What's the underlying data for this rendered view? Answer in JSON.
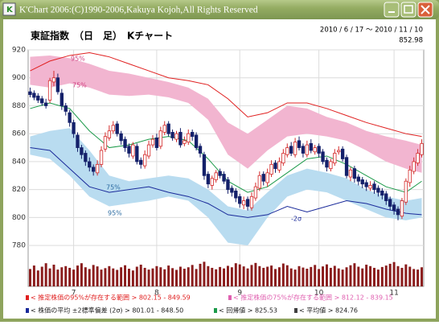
{
  "window_title": "K'Chart 2006:(C)1990-2006,Kakuya Kojoh,All Rights Reserved",
  "chart_data": {
    "type": "candlestick",
    "title": "東証指数　（日　足）　Kチャート",
    "subtitle": "2010 / 6 / 17 ～ 2010 / 11 / 10",
    "last_close": 852.98,
    "categories": [
      null,
      null,
      null,
      null,
      null,
      null,
      null,
      null,
      null,
      null,
      null,
      null,
      null,
      null,
      null,
      null,
      null,
      null,
      null,
      null,
      null,
      null,
      null,
      null,
      null,
      null,
      null,
      null,
      null,
      null,
      null,
      null,
      null,
      null,
      null,
      null,
      null,
      null,
      null,
      null,
      null,
      null,
      null,
      null,
      null,
      null,
      null,
      null,
      null,
      null,
      null,
      null,
      null,
      null,
      null,
      null,
      null,
      null,
      null,
      null,
      null,
      null,
      null,
      null,
      null,
      null,
      null,
      null,
      null,
      null,
      null,
      null,
      null,
      null,
      null,
      null,
      null,
      null,
      null,
      null,
      null,
      null,
      null,
      null,
      null,
      null,
      null,
      null,
      null,
      null,
      null,
      null,
      null,
      null,
      null,
      null,
      null,
      null,
      null,
      null
    ],
    "open": [
      890,
      889,
      887,
      885,
      882,
      884,
      897,
      900,
      889,
      880,
      875,
      868,
      859,
      850,
      846,
      840,
      836,
      832,
      838,
      849,
      857,
      862,
      867,
      860,
      856,
      851,
      844,
      851,
      841,
      837,
      844,
      852,
      857,
      851,
      861,
      867,
      861,
      856,
      861,
      853,
      854,
      861,
      859,
      851,
      845,
      831,
      823,
      827,
      833,
      831,
      827,
      821,
      819,
      815,
      809,
      813,
      807,
      814,
      821,
      831,
      825,
      831,
      839,
      834,
      839,
      845,
      851,
      845,
      855,
      851,
      845,
      853,
      847,
      851,
      847,
      841,
      835,
      839,
      847,
      849,
      843,
      829,
      835,
      829,
      827,
      825,
      821,
      824,
      821,
      819,
      817,
      813,
      809,
      806,
      801,
      811,
      825,
      833,
      839,
      845
    ],
    "high": [
      893,
      891,
      889,
      887,
      885,
      900,
      905,
      903,
      892,
      882,
      877,
      870,
      861,
      852,
      848,
      843,
      838,
      841,
      851,
      861,
      866,
      869,
      869,
      862,
      858,
      853,
      854,
      853,
      843,
      848,
      855,
      859,
      860,
      865,
      869,
      869,
      863,
      862,
      864,
      858,
      863,
      863,
      861,
      853,
      847,
      833,
      830,
      834,
      835,
      833,
      829,
      823,
      821,
      817,
      815,
      815,
      818,
      825,
      833,
      833,
      835,
      841,
      841,
      843,
      849,
      853,
      854,
      857,
      858,
      853,
      855,
      856,
      852,
      853,
      849,
      843,
      842,
      849,
      851,
      851,
      845,
      836,
      837,
      831,
      829,
      827,
      826,
      826,
      823,
      821,
      819,
      815,
      811,
      808,
      814,
      828,
      837,
      843,
      849,
      856
    ],
    "low": [
      886,
      884,
      882,
      880,
      878,
      882,
      894,
      888,
      877,
      873,
      865,
      857,
      847,
      842,
      837,
      833,
      830,
      830,
      836,
      847,
      855,
      860,
      858,
      852,
      847,
      843,
      842,
      838,
      835,
      835,
      842,
      850,
      848,
      849,
      859,
      858,
      855,
      854,
      850,
      851,
      852,
      855,
      848,
      843,
      827,
      821,
      820,
      825,
      828,
      824,
      817,
      815,
      811,
      807,
      806,
      805,
      805,
      812,
      819,
      823,
      822,
      829,
      832,
      832,
      837,
      843,
      844,
      843,
      848,
      843,
      843,
      846,
      845,
      843,
      838,
      833,
      833,
      837,
      845,
      840,
      828,
      826,
      825,
      823,
      821,
      819,
      819,
      817,
      815,
      813,
      809,
      805,
      802,
      798,
      799,
      809,
      822,
      831,
      837,
      843
    ],
    "close": [
      888,
      886,
      884,
      882,
      880,
      898,
      900,
      890,
      880,
      876,
      868,
      860,
      850,
      845,
      840,
      836,
      833,
      838,
      848,
      858,
      862,
      866,
      860,
      855,
      850,
      846,
      852,
      840,
      838,
      845,
      852,
      856,
      850,
      862,
      866,
      860,
      857,
      860,
      852,
      855,
      860,
      858,
      850,
      846,
      830,
      824,
      828,
      832,
      830,
      826,
      820,
      818,
      814,
      810,
      812,
      808,
      815,
      822,
      830,
      826,
      832,
      838,
      835,
      840,
      846,
      850,
      846,
      854,
      850,
      846,
      852,
      848,
      850,
      846,
      840,
      836,
      840,
      846,
      848,
      842,
      830,
      834,
      828,
      826,
      824,
      822,
      823,
      820,
      818,
      816,
      812,
      808,
      805,
      802,
      812,
      826,
      834,
      840,
      846,
      852.98
    ],
    "up_color": "#d42a2a",
    "down_color": "#14206a",
    "ylim": [
      772,
      920
    ],
    "yticks": [
      780,
      800,
      820,
      840,
      860,
      880,
      900,
      920
    ],
    "xticks": [
      {
        "value": 11,
        "label": "7"
      },
      {
        "value": 32,
        "label": "8"
      },
      {
        "value": 53,
        "label": "9"
      },
      {
        "value": 73,
        "label": "10"
      },
      {
        "value": 92,
        "label": "11"
      }
    ],
    "grid": true,
    "bands": [
      {
        "color": "#f2b5d0",
        "x": [
          0,
          5,
          10,
          15,
          20,
          25,
          30,
          35,
          40,
          45,
          50,
          55,
          60,
          65,
          70,
          75,
          80,
          85,
          90,
          95,
          99
        ],
        "high": [
          915,
          916,
          914,
          910,
          905,
          903,
          900,
          897,
          893,
          885,
          868,
          860,
          870,
          880,
          878,
          872,
          868,
          862,
          858,
          855,
          852
        ],
        "low": [
          895,
          893,
          896,
          893,
          888,
          887,
          888,
          886,
          882,
          870,
          845,
          835,
          848,
          858,
          860,
          858,
          855,
          848,
          840,
          835,
          832
        ]
      },
      {
        "color": "#b9dcf0",
        "x": [
          0,
          5,
          10,
          15,
          20,
          25,
          30,
          35,
          40,
          45,
          50,
          55,
          60,
          65,
          70,
          75,
          80,
          85,
          90,
          95,
          99
        ],
        "high": [
          858,
          862,
          864,
          848,
          830,
          826,
          828,
          830,
          828,
          820,
          808,
          805,
          818,
          830,
          835,
          832,
          828,
          820,
          815,
          812,
          814
        ],
        "low": [
          845,
          842,
          830,
          815,
          808,
          810,
          812,
          815,
          812,
          800,
          782,
          780,
          800,
          815,
          820,
          818,
          812,
          806,
          800,
          798,
          800
        ]
      }
    ],
    "lines": [
      {
        "color": "#e02020",
        "x": [
          0,
          5,
          10,
          15,
          20,
          25,
          30,
          35,
          40,
          45,
          50,
          55,
          60,
          65,
          70,
          75,
          80,
          85,
          90,
          95,
          99
        ],
        "values": [
          905,
          912,
          916,
          918,
          915,
          910,
          905,
          900,
          898,
          895,
          885,
          872,
          875,
          882,
          882,
          878,
          873,
          868,
          864,
          860,
          858
        ]
      },
      {
        "color": "#1c9a4a",
        "x": [
          0,
          5,
          10,
          15,
          20,
          25,
          30,
          35,
          40,
          45,
          50,
          55,
          60,
          65,
          70,
          75,
          80,
          85,
          90,
          95,
          99
        ],
        "values": [
          878,
          882,
          878,
          862,
          850,
          852,
          856,
          858,
          855,
          842,
          826,
          818,
          822,
          832,
          842,
          844,
          838,
          830,
          822,
          818,
          826
        ]
      },
      {
        "color": "#1a2a9a",
        "x": [
          0,
          5,
          10,
          15,
          20,
          25,
          30,
          35,
          40,
          45,
          50,
          55,
          60,
          65,
          70,
          75,
          80,
          85,
          90,
          95,
          99
        ],
        "values": [
          850,
          848,
          835,
          822,
          818,
          820,
          822,
          818,
          815,
          810,
          802,
          800,
          802,
          808,
          804,
          808,
          812,
          810,
          806,
          803,
          802
        ]
      }
    ],
    "volume": [
      60,
      72,
      55,
      68,
      80,
      62,
      75,
      58,
      66,
      70,
      64,
      58,
      72,
      80,
      66,
      60,
      74,
      69,
      58,
      63,
      70,
      62,
      57,
      66,
      73,
      61,
      55,
      68,
      75,
      64,
      58,
      62,
      70,
      66,
      59,
      72,
      63,
      57,
      68,
      61,
      66,
      74,
      60,
      78,
      85,
      70,
      64,
      59,
      67,
      62,
      71,
      66,
      80,
      76,
      69,
      62,
      74,
      81,
      70,
      64,
      68,
      72,
      60,
      66,
      79,
      73,
      62,
      58,
      70,
      65,
      61,
      67,
      74,
      60,
      69,
      76,
      64,
      71,
      62,
      58,
      66,
      73,
      80,
      68,
      62,
      75,
      70,
      64,
      58,
      67,
      72,
      78,
      84,
      70,
      64,
      76,
      68,
      60,
      58,
      66
    ],
    "volume_ylim": [
      0,
      100
    ],
    "volume_color": "#8a1c1c",
    "annotations": [
      "95%",
      "75%",
      "75%",
      "95%",
      "-2σ"
    ],
    "legend": [
      {
        "text": "< 推定株価の95%が存在する範囲 > 802.15 - 849.59",
        "color": "#e02020"
      },
      {
        "text": "< 推定株価の75%が存在する範囲 > 812.12 - 839.15",
        "color": "#e060b0"
      },
      {
        "text": "< 株価の平均 ±2標準偏差 (2σ) > 801.01 - 848.50",
        "color": "#1a2a9a"
      },
      {
        "text": "< 回帰値 > 825.53",
        "color": "#1c9a4a"
      },
      {
        "text": "< 平均値 > 824.76",
        "color": "#404040"
      }
    ]
  }
}
